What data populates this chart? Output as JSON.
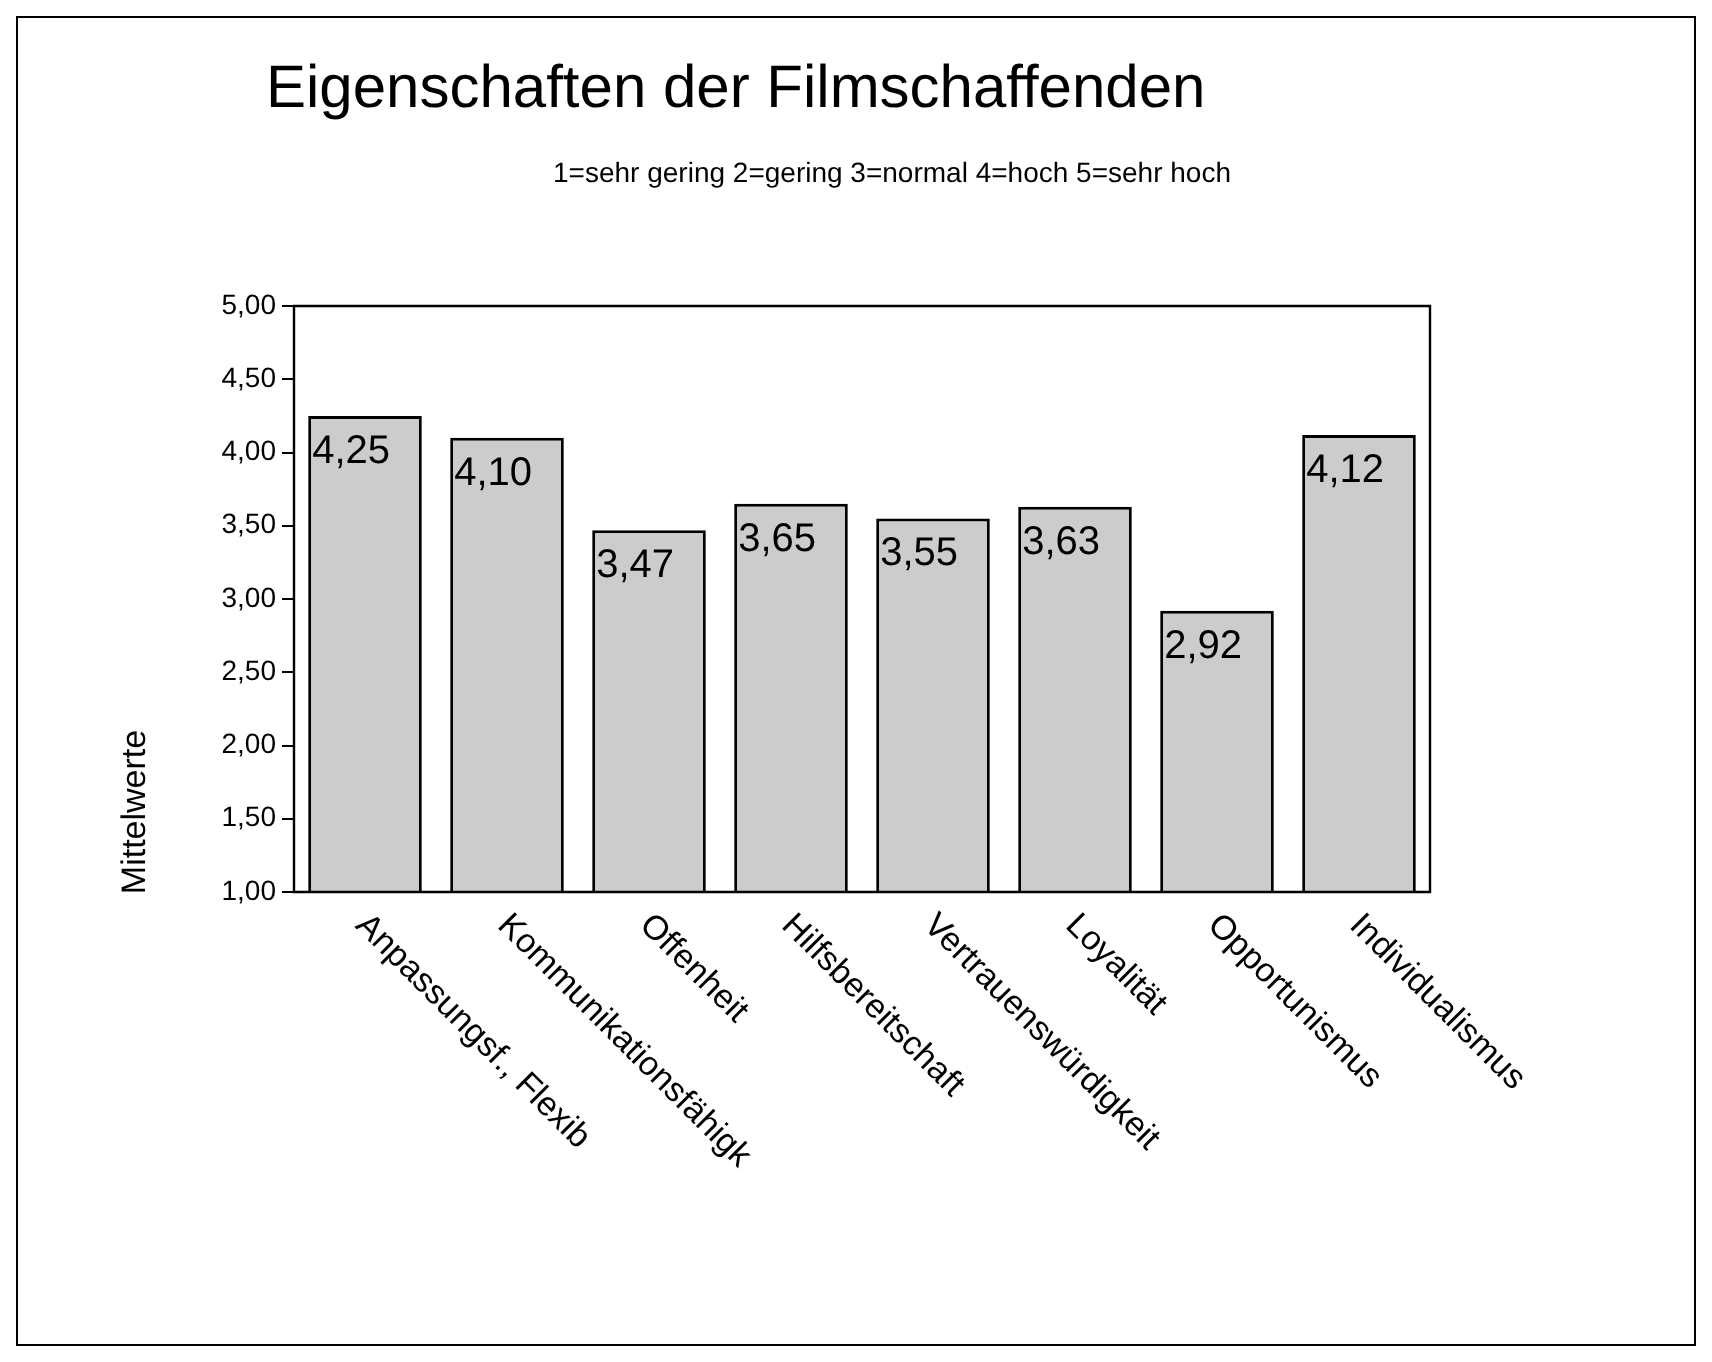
{
  "chart_data": {
    "type": "bar",
    "title": "Eigenschaften der Filmschaffenden",
    "subtitle": "1=sehr gering 2=gering 3=normal 4=hoch 5=sehr hoch",
    "ylabel": "Mittelwerte",
    "categories": [
      "Anpassungsf., Flexib",
      "Kommunikationsfähigk",
      "Offenheit",
      "Hilfsbereitschaft",
      "Vertrauenswürdigkeit",
      "Loyalität",
      "Opportunismus",
      "Individualismus"
    ],
    "values": [
      4.25,
      4.1,
      3.47,
      3.65,
      3.55,
      3.63,
      2.92,
      4.12
    ],
    "value_labels": [
      "4,25",
      "4,10",
      "3,47",
      "3,65",
      "3,55",
      "3,63",
      "2,92",
      "4,12"
    ],
    "color": "#cccccc",
    "ylim": [
      1,
      5
    ],
    "yticks": [
      {
        "value": 1,
        "label": "1,00"
      },
      {
        "value": 1.5,
        "label": "1,50"
      },
      {
        "value": 2,
        "label": "2,00"
      },
      {
        "value": 2.5,
        "label": "2,50"
      },
      {
        "value": 3,
        "label": "3,00"
      },
      {
        "value": 3.5,
        "label": "3,50"
      },
      {
        "value": 4,
        "label": "4,00"
      },
      {
        "value": 4.5,
        "label": "4,50"
      },
      {
        "value": 5,
        "label": "5,00"
      }
    ],
    "grid": false,
    "legend": false
  }
}
